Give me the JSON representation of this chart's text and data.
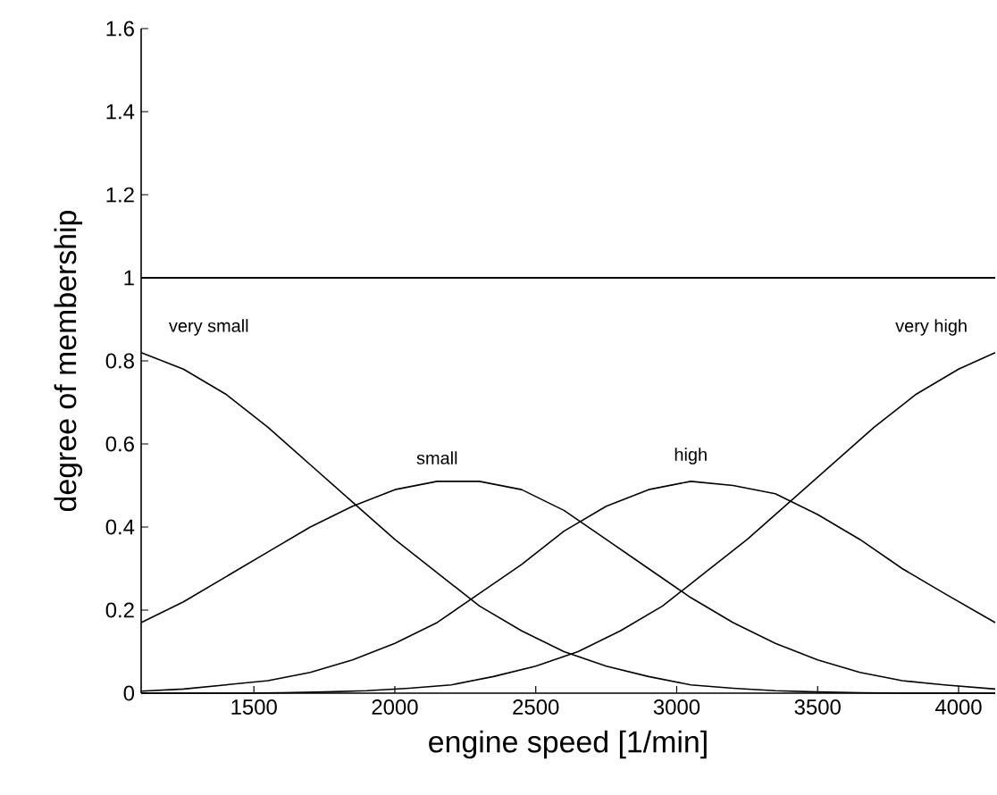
{
  "chart_data": {
    "type": "line",
    "xlabel": "engine speed [1/min]",
    "ylabel": "degree of membership",
    "xlim": [
      1100,
      4130
    ],
    "ylim": [
      0,
      1.6
    ],
    "xticks": [
      1500,
      2000,
      2500,
      3000,
      3500,
      4000
    ],
    "yticks": [
      0,
      0.2,
      0.4,
      0.6,
      0.8,
      1,
      1.2,
      1.4,
      1.6
    ],
    "grid": false,
    "marker": "none",
    "line_style": "solid",
    "ref_lines": [
      {
        "axis": "y",
        "value": 1,
        "color": "#000000"
      }
    ],
    "series": [
      {
        "name": "very small",
        "color": "#000000",
        "x": [
          1100,
          1250,
          1400,
          1550,
          1700,
          1850,
          2000,
          2150,
          2300,
          2450,
          2600,
          2750,
          2900,
          3050,
          3200,
          3350,
          3500,
          3650,
          3800,
          3950,
          4130
        ],
        "values": [
          0.82,
          0.78,
          0.72,
          0.64,
          0.55,
          0.46,
          0.37,
          0.29,
          0.21,
          0.15,
          0.1,
          0.065,
          0.04,
          0.02,
          0.012,
          0.006,
          0.003,
          0.001,
          0,
          0,
          0
        ]
      },
      {
        "name": "small",
        "color": "#000000",
        "x": [
          1100,
          1250,
          1400,
          1550,
          1700,
          1850,
          2000,
          2150,
          2300,
          2450,
          2600,
          2750,
          2900,
          3050,
          3200,
          3350,
          3500,
          3650,
          3800,
          3950,
          4130
        ],
        "values": [
          0.17,
          0.22,
          0.28,
          0.34,
          0.4,
          0.45,
          0.49,
          0.51,
          0.51,
          0.49,
          0.44,
          0.37,
          0.3,
          0.23,
          0.17,
          0.12,
          0.08,
          0.05,
          0.03,
          0.02,
          0.01
        ]
      },
      {
        "name": "high",
        "color": "#000000",
        "x": [
          1100,
          1250,
          1400,
          1550,
          1700,
          1850,
          2000,
          2150,
          2300,
          2450,
          2600,
          2750,
          2900,
          3050,
          3200,
          3350,
          3500,
          3650,
          3800,
          3950,
          4130
        ],
        "values": [
          0.005,
          0.01,
          0.02,
          0.03,
          0.05,
          0.08,
          0.12,
          0.17,
          0.24,
          0.31,
          0.39,
          0.45,
          0.49,
          0.51,
          0.5,
          0.48,
          0.43,
          0.37,
          0.3,
          0.24,
          0.17
        ]
      },
      {
        "name": "very high",
        "color": "#000000",
        "x": [
          1100,
          1300,
          1450,
          1600,
          1750,
          1900,
          2050,
          2200,
          2350,
          2500,
          2650,
          2800,
          2950,
          3100,
          3250,
          3400,
          3550,
          3700,
          3850,
          4000,
          4130
        ],
        "values": [
          0,
          0,
          0,
          0.001,
          0.003,
          0.006,
          0.012,
          0.02,
          0.04,
          0.065,
          0.1,
          0.15,
          0.21,
          0.29,
          0.37,
          0.46,
          0.55,
          0.64,
          0.72,
          0.78,
          0.82
        ]
      }
    ]
  }
}
